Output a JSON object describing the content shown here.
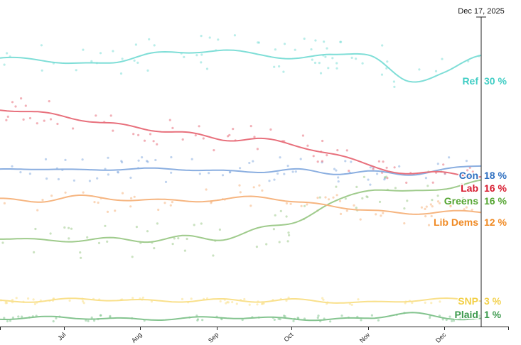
{
  "chart_data": {
    "type": "line",
    "current_date_label": "Dec 17, 2025",
    "x_tick_labels": [
      "Jul",
      "Aug",
      "Sep",
      "Oct",
      "Nov",
      "Dec"
    ],
    "ylim": [
      0,
      34
    ],
    "series": [
      {
        "name": "Ref",
        "end_value_label": "30 %",
        "color": "#7fded7",
        "values": [
          29.5,
          29.2,
          28.9,
          29.0,
          30.1,
          30.0,
          30.3,
          29.8,
          29.6,
          29.9,
          29.8,
          26.8,
          28.0,
          29.8
        ]
      },
      {
        "name": "Con",
        "end_value_label": "18 %",
        "color": "#8aaee0",
        "values": [
          17.1,
          17.3,
          17.2,
          17.4,
          17.3,
          17.2,
          17.0,
          17.1,
          17.3,
          16.8,
          16.9,
          16.7,
          17.3,
          17.8
        ]
      },
      {
        "name": "Lab",
        "end_value_label": "16 %",
        "color": "#e8707c",
        "values": [
          23.7,
          23.6,
          22.9,
          22.4,
          21.5,
          21.3,
          20.5,
          20.8,
          19.8,
          18.9,
          17.6,
          16.9,
          17.0,
          16.5
        ]
      },
      {
        "name": "Greens",
        "end_value_label": "16 %",
        "color": "#9fcb8c",
        "values": [
          9.7,
          9.6,
          9.5,
          9.6,
          9.3,
          9.9,
          9.7,
          10.8,
          11.5,
          13.5,
          15.1,
          14.9,
          15.2,
          15.9
        ]
      },
      {
        "name": "Lib Dems",
        "end_value_label": "12 %",
        "color": "#f6b580",
        "values": [
          14.1,
          13.8,
          14.3,
          13.9,
          13.9,
          13.9,
          14.0,
          14.2,
          13.6,
          13.2,
          12.9,
          12.4,
          12.6,
          12.4
        ]
      },
      {
        "name": "SNP",
        "end_value_label": "3 %",
        "color": "#f9e08b",
        "values": [
          2.9,
          2.8,
          2.9,
          2.9,
          2.9,
          2.9,
          2.9,
          2.7,
          2.9,
          2.8,
          2.7,
          2.8,
          2.9,
          2.9
        ]
      },
      {
        "name": "Plaid",
        "end_value_label": "1 %",
        "color": "#84c48f",
        "values": [
          0.9,
          0.9,
          0.9,
          0.9,
          0.9,
          0.9,
          0.9,
          0.9,
          0.9,
          0.9,
          0.9,
          1.4,
          0.9,
          1.0
        ]
      }
    ],
    "label_colors": {
      "Ref": "#3fcdc4",
      "Con": "#2e6fc0",
      "Lab": "#d7192d",
      "Greens": "#55a532",
      "Lib Dems": "#f08a24",
      "SNP": "#f2cf45",
      "Plaid": "#3d9a4e"
    }
  }
}
